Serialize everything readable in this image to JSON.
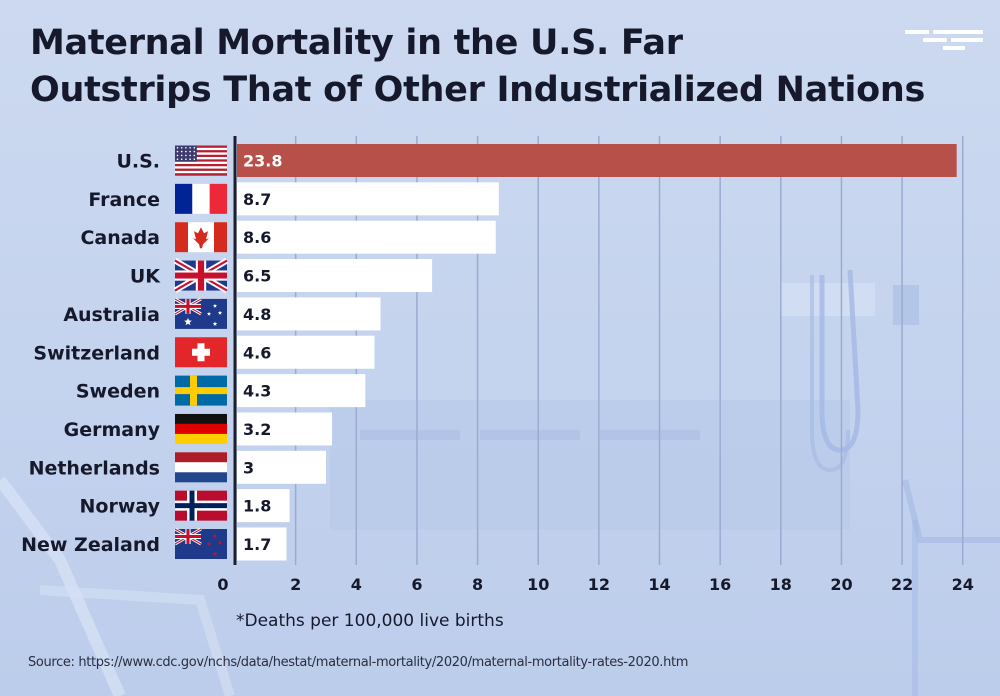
{
  "title_lines": [
    "Maternal Mortality in the U.S. Far",
    "Outstrips That of Other Industrialized Nations"
  ],
  "footnote": "*Deaths per 100,000 live births",
  "source": "Source: https://www.cdc.gov/nchs/data/hestat/maternal-mortality/2020/maternal-mortality-rates-2020.htm",
  "colors": {
    "highlight": "#b65048",
    "bar": "#ffffff",
    "text": "#16192b",
    "gridline": "#9aabd0",
    "axis": "#1c1f2e"
  },
  "chart_data": {
    "type": "bar",
    "orientation": "horizontal",
    "title": "Maternal Mortality in the U.S. Far Outstrips That of Other Industrialized Nations",
    "xlabel": "*Deaths per 100,000 live births",
    "ylabel": "",
    "categories": [
      "U.S.",
      "France",
      "Canada",
      "UK",
      "Australia",
      "Switzerland",
      "Sweden",
      "Germany",
      "Netherlands",
      "Norway",
      "New Zealand"
    ],
    "values": [
      23.8,
      8.7,
      8.6,
      6.5,
      4.8,
      4.6,
      4.3,
      3.2,
      3,
      1.8,
      1.7
    ],
    "value_labels": [
      "23.8",
      "8.7",
      "8.6",
      "6.5",
      "4.8",
      "4.6",
      "4.3",
      "3.2",
      "3",
      "1.8",
      "1.7"
    ],
    "flags": [
      "us-flag",
      "france-flag",
      "canada-flag",
      "uk-flag",
      "australia-flag",
      "switzerland-flag",
      "sweden-flag",
      "germany-flag",
      "netherlands-flag",
      "norway-flag",
      "new-zealand-flag"
    ],
    "highlight_category": "U.S.",
    "xlim": [
      0,
      24.8
    ],
    "xticks": [
      0,
      2,
      4,
      6,
      8,
      10,
      12,
      14,
      16,
      18,
      20,
      22,
      24
    ],
    "grid": true
  }
}
